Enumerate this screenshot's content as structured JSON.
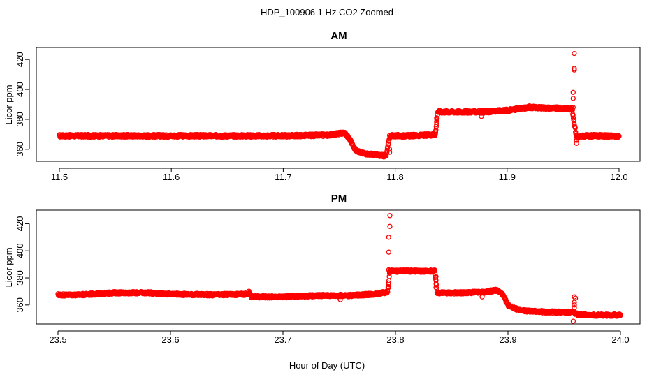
{
  "figure": {
    "title": "HDP_100906  1 Hz CO2 Zoomed",
    "xlabel": "Hour of Day (UTC)"
  },
  "chart_data": [
    {
      "type": "scatter",
      "title": "AM",
      "xlabel": "Hour of Day (UTC)",
      "ylabel": "Licor ppm",
      "xlim": [
        11.5,
        12.0
      ],
      "ylim": [
        352,
        428
      ],
      "x_ticks": [
        "11.5",
        "11.6",
        "11.7",
        "11.8",
        "11.9",
        "12.0"
      ],
      "y_ticks": [
        "360",
        "380",
        "400",
        "420"
      ],
      "color": "#ff0000",
      "marker": "open-circle",
      "trace": [
        [
          11.5,
          369
        ],
        [
          11.55,
          369
        ],
        [
          11.6,
          369
        ],
        [
          11.65,
          369
        ],
        [
          11.7,
          369
        ],
        [
          11.74,
          369.5
        ],
        [
          11.755,
          371
        ],
        [
          11.76,
          366
        ],
        [
          11.764,
          360
        ],
        [
          11.77,
          357.5
        ],
        [
          11.78,
          356.5
        ],
        [
          11.792,
          355.5
        ],
        [
          11.795,
          369
        ],
        [
          11.81,
          369
        ],
        [
          11.83,
          369.5
        ],
        [
          11.836,
          370
        ],
        [
          11.838,
          385
        ],
        [
          11.86,
          385
        ],
        [
          11.88,
          385
        ],
        [
          11.9,
          386
        ],
        [
          11.92,
          388
        ],
        [
          11.94,
          387.5
        ],
        [
          11.958,
          387
        ],
        [
          11.962,
          368
        ],
        [
          11.97,
          369
        ],
        [
          11.985,
          369
        ],
        [
          12.0,
          368.5
        ]
      ],
      "outliers": [
        [
          11.795,
          358
        ],
        [
          11.795,
          360
        ],
        [
          11.836,
          372
        ],
        [
          11.837,
          378
        ],
        [
          11.837,
          381
        ],
        [
          11.877,
          382
        ],
        [
          11.959,
          388
        ],
        [
          11.959,
          394
        ],
        [
          11.959,
          398
        ],
        [
          11.96,
          413
        ],
        [
          11.96,
          414
        ],
        [
          11.96,
          424
        ],
        [
          11.962,
          364
        ],
        [
          11.962,
          366
        ],
        [
          11.92,
          389
        ]
      ]
    },
    {
      "type": "scatter",
      "title": "PM",
      "xlabel": "Hour of Day (UTC)",
      "ylabel": "Licor ppm",
      "xlim": [
        23.5,
        24.0
      ],
      "ylim": [
        346,
        430
      ],
      "x_ticks": [
        "23.5",
        "23.6",
        "23.7",
        "23.8",
        "23.9",
        "24.0"
      ],
      "y_ticks": [
        "360",
        "380",
        "400",
        "420"
      ],
      "color": "#ff0000",
      "marker": "open-circle",
      "trace": [
        [
          23.5,
          367.5
        ],
        [
          23.52,
          367.5
        ],
        [
          23.55,
          369
        ],
        [
          23.58,
          369
        ],
        [
          23.6,
          368
        ],
        [
          23.64,
          367.5
        ],
        [
          23.668,
          368
        ],
        [
          23.67,
          369.5
        ],
        [
          23.672,
          366
        ],
        [
          23.7,
          366
        ],
        [
          23.73,
          367
        ],
        [
          23.76,
          367
        ],
        [
          23.78,
          368
        ],
        [
          23.793,
          369.5
        ],
        [
          23.795,
          385
        ],
        [
          23.81,
          385
        ],
        [
          23.835,
          385
        ],
        [
          23.837,
          369
        ],
        [
          23.86,
          369
        ],
        [
          23.88,
          369.5
        ],
        [
          23.89,
          371
        ],
        [
          23.895,
          368
        ],
        [
          23.9,
          360
        ],
        [
          23.91,
          356
        ],
        [
          23.93,
          355
        ],
        [
          23.958,
          354.5
        ],
        [
          23.962,
          353
        ],
        [
          23.98,
          352.5
        ],
        [
          24.0,
          352.5
        ]
      ],
      "outliers": [
        [
          23.751,
          364
        ],
        [
          23.794,
          373
        ],
        [
          23.794,
          375
        ],
        [
          23.794,
          386
        ],
        [
          23.794,
          399
        ],
        [
          23.794,
          410
        ],
        [
          23.795,
          418
        ],
        [
          23.795,
          426
        ],
        [
          23.836,
          373
        ],
        [
          23.836,
          378
        ],
        [
          23.836,
          381
        ],
        [
          23.877,
          366
        ],
        [
          23.958,
          348
        ],
        [
          23.959,
          358
        ],
        [
          23.959,
          360
        ],
        [
          23.959,
          362
        ],
        [
          23.959,
          366
        ],
        [
          23.96,
          365
        ]
      ]
    }
  ]
}
